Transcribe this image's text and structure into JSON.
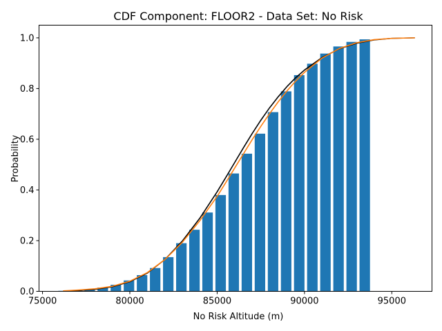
{
  "chart_data": {
    "type": "bar",
    "title": "CDF Component: FLOOR2 - Data Set: No Risk",
    "xlabel": "No Risk Altitude (m)",
    "ylabel": "Probability",
    "xlim": [
      74800,
      97300
    ],
    "ylim": [
      0,
      1.05
    ],
    "xticks": [
      75000,
      80000,
      85000,
      90000,
      95000
    ],
    "yticks": [
      0.0,
      0.2,
      0.4,
      0.6,
      0.8,
      1.0
    ],
    "xtick_labels": [
      "75000",
      "80000",
      "85000",
      "90000",
      "95000"
    ],
    "ytick_labels": [
      "0.0",
      "0.2",
      "0.4",
      "0.6",
      "0.8",
      "1.0"
    ],
    "grid": false,
    "bar_color": "#1f77b4",
    "bar_width": 600,
    "bars": {
      "x": [
        76200,
        76950,
        77700,
        78450,
        79200,
        79950,
        80700,
        81450,
        82200,
        82950,
        83700,
        84450,
        85200,
        85950,
        86700,
        87450,
        88200,
        88950,
        89700,
        90450,
        91200,
        91950,
        92700,
        93450
      ],
      "values": [
        0.002,
        0.004,
        0.008,
        0.015,
        0.026,
        0.043,
        0.064,
        0.092,
        0.135,
        0.19,
        0.243,
        0.311,
        0.38,
        0.465,
        0.543,
        0.622,
        0.707,
        0.789,
        0.853,
        0.898,
        0.938,
        0.966,
        0.984,
        0.994
      ]
    },
    "series": [
      {
        "color": "#000000",
        "x": [
          76200,
          77000,
          78000,
          79000,
          80000,
          81000,
          82000,
          83000,
          84000,
          85000,
          85500,
          86000,
          86500,
          87000,
          87500,
          88000,
          88500,
          89000,
          89500,
          90000,
          91000,
          92000,
          93000,
          94000,
          95000,
          96300
        ],
        "values": [
          0.001,
          0.003,
          0.008,
          0.018,
          0.038,
          0.072,
          0.125,
          0.198,
          0.288,
          0.393,
          0.45,
          0.508,
          0.566,
          0.622,
          0.675,
          0.724,
          0.768,
          0.808,
          0.843,
          0.873,
          0.922,
          0.957,
          0.979,
          0.992,
          0.998,
          1.0
        ]
      },
      {
        "color": "#ff7f0e",
        "x": [
          76200,
          77000,
          78000,
          79000,
          80000,
          81000,
          82000,
          83000,
          84000,
          85000,
          85500,
          86000,
          86500,
          87000,
          87500,
          88000,
          88500,
          89000,
          89500,
          90000,
          91000,
          92000,
          93000,
          94000,
          95000,
          96300
        ],
        "values": [
          0.002,
          0.005,
          0.01,
          0.02,
          0.04,
          0.074,
          0.125,
          0.193,
          0.278,
          0.375,
          0.43,
          0.486,
          0.542,
          0.598,
          0.651,
          0.701,
          0.748,
          0.791,
          0.83,
          0.864,
          0.92,
          0.958,
          0.981,
          0.993,
          0.998,
          1.0
        ]
      }
    ]
  }
}
